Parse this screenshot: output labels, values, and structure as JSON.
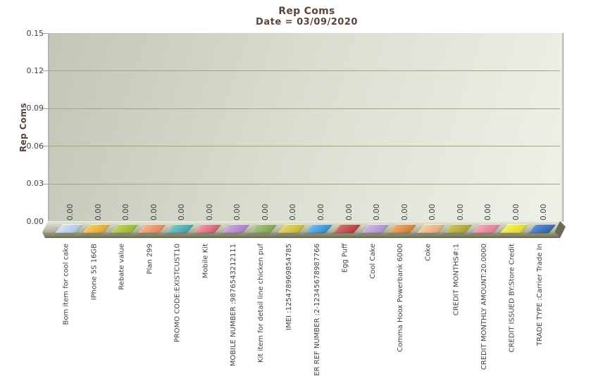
{
  "chart_data": {
    "type": "bar",
    "title": "Rep Coms",
    "subtitle": "Date = 03/09/2020",
    "xlabel": "",
    "ylabel": "Rep Coms",
    "ylim": [
      0,
      0.15
    ],
    "ytick_labels": [
      "0.15",
      "0.12",
      "0.09",
      "0.06",
      "0.03",
      "0.00"
    ],
    "grid": true,
    "legend": false,
    "categories": [
      "Bom item for cool cake",
      "IPhone 5S 16GB",
      "Rebate value",
      "Plan 299",
      "PROMO CODE:EXISTCUST10",
      "Mobile Kit",
      "MOBILE NUMBER :9876543212111",
      "Kit item for detail line chicken puf",
      "IMEI :125478969854785",
      "ER REF NUMBER :2-12345678987766",
      "Egg Puff",
      "Cool Cake",
      "Comma Hoox Powerbank 6000",
      "Coke",
      "CREDIT MONTHS#:1",
      "CREDIT MONTHLY AMOUNT:20.0000",
      "CREDIT ISSUED BY:Store Credit",
      "TRADE TYPE :Carrier Trade In"
    ],
    "values": [
      0,
      0,
      0,
      0,
      0,
      0,
      0,
      0,
      0,
      0,
      0,
      0,
      0,
      0,
      0,
      0,
      0,
      0
    ],
    "value_labels": [
      "0.00",
      "0.00",
      "0.00",
      "0.00",
      "0.00",
      "0.00",
      "0.00",
      "0.00",
      "0.00",
      "0.00",
      "0.00",
      "0.00",
      "0.00",
      "0.00",
      "0.00",
      "0.00",
      "0.00",
      "0.00"
    ],
    "bar_colors": [
      {
        "light": "#d8e6f4",
        "dark": "#a4c2e0"
      },
      {
        "light": "#f4d06a",
        "dark": "#dda32e"
      },
      {
        "light": "#c2d668",
        "dark": "#94b52e"
      },
      {
        "light": "#f4b894",
        "dark": "#df8458"
      },
      {
        "light": "#84caca",
        "dark": "#3e9da6"
      },
      {
        "light": "#efa0ac",
        "dark": "#cc5a6a"
      },
      {
        "light": "#cfafe2",
        "dark": "#a678c2"
      },
      {
        "light": "#aec886",
        "dark": "#7ba04e"
      },
      {
        "light": "#e6da78",
        "dark": "#c6b42e"
      },
      {
        "light": "#7cbcec",
        "dark": "#2e88cf"
      },
      {
        "light": "#d47272",
        "dark": "#ae3c3c"
      },
      {
        "light": "#d2bae8",
        "dark": "#a98cc9"
      },
      {
        "light": "#eeae72",
        "dark": "#cc7a30"
      },
      {
        "light": "#f4d2ac",
        "dark": "#e2a878"
      },
      {
        "light": "#ccc462",
        "dark": "#a6a030"
      },
      {
        "light": "#f4aabe",
        "dark": "#e07890"
      },
      {
        "light": "#f4f06c",
        "dark": "#ded820"
      },
      {
        "light": "#6093d4",
        "dark": "#2a62a8"
      }
    ]
  },
  "colors": {
    "title_text": "#5c443c",
    "axis_text": "#414141",
    "gridline": "#9aa87a",
    "wall_start": "#c2c6b8",
    "wall_end": "#eef1e8",
    "floor_top_light": "#e3e3d4",
    "floor_top_dark": "#acac98",
    "floor_front": "#8e8e76",
    "floor_side": "#6b6b55"
  }
}
